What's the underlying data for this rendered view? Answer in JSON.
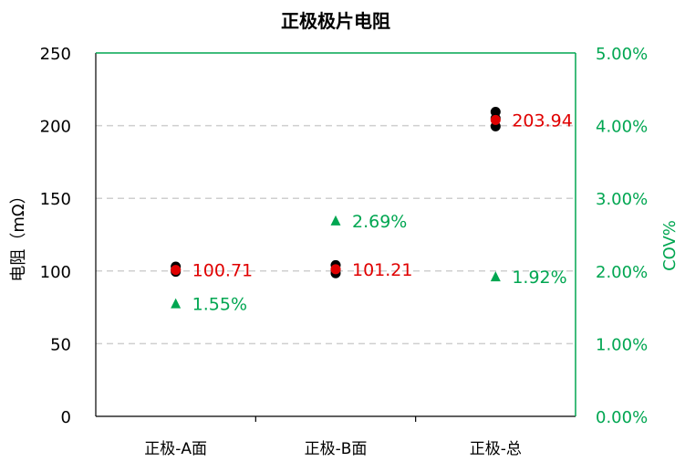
{
  "chart_data": {
    "type": "scatter",
    "title": "正极极片电阻",
    "ylabel": "电阻（mΩ）",
    "ylabel_right": "COV%",
    "ylim": [
      0,
      250
    ],
    "ylim_right": [
      0,
      5
    ],
    "yticks": [
      "0",
      "50",
      "100",
      "150",
      "200",
      "250"
    ],
    "yticks_right": [
      "0.00%",
      "1.00%",
      "2.00%",
      "3.00%",
      "4.00%",
      "5.00%"
    ],
    "categories": [
      "正极-A面",
      "正极-B面",
      "正极-总"
    ],
    "grid": "horizontal dashed",
    "colors": {
      "samples": "#000000",
      "mean": "#e00000",
      "cov": "#00a651",
      "axis": "#000000",
      "right_axis": "#00a651"
    },
    "series": [
      {
        "axis": "left",
        "marker": "circle",
        "color": "#000000",
        "points": [
          [
            0,
            103
          ],
          [
            0,
            101
          ],
          [
            0,
            99.5
          ],
          [
            1,
            104
          ],
          [
            1,
            101
          ],
          [
            1,
            98.5
          ],
          [
            2,
            209.5
          ],
          [
            2,
            205
          ],
          [
            2,
            199.5
          ]
        ]
      },
      {
        "axis": "left",
        "marker": "circle",
        "color": "#e00000",
        "points": [
          [
            0,
            100.71
          ],
          [
            1,
            101.21
          ],
          [
            2,
            203.94
          ]
        ],
        "labels": [
          "100.71",
          "101.21",
          "203.94"
        ]
      },
      {
        "axis": "right",
        "marker": "triangle",
        "color": "#00a651",
        "points": [
          [
            0,
            1.55
          ],
          [
            1,
            2.69
          ],
          [
            2,
            1.92
          ]
        ],
        "labels": [
          "1.55%",
          "2.69%",
          "1.92%"
        ]
      }
    ]
  }
}
